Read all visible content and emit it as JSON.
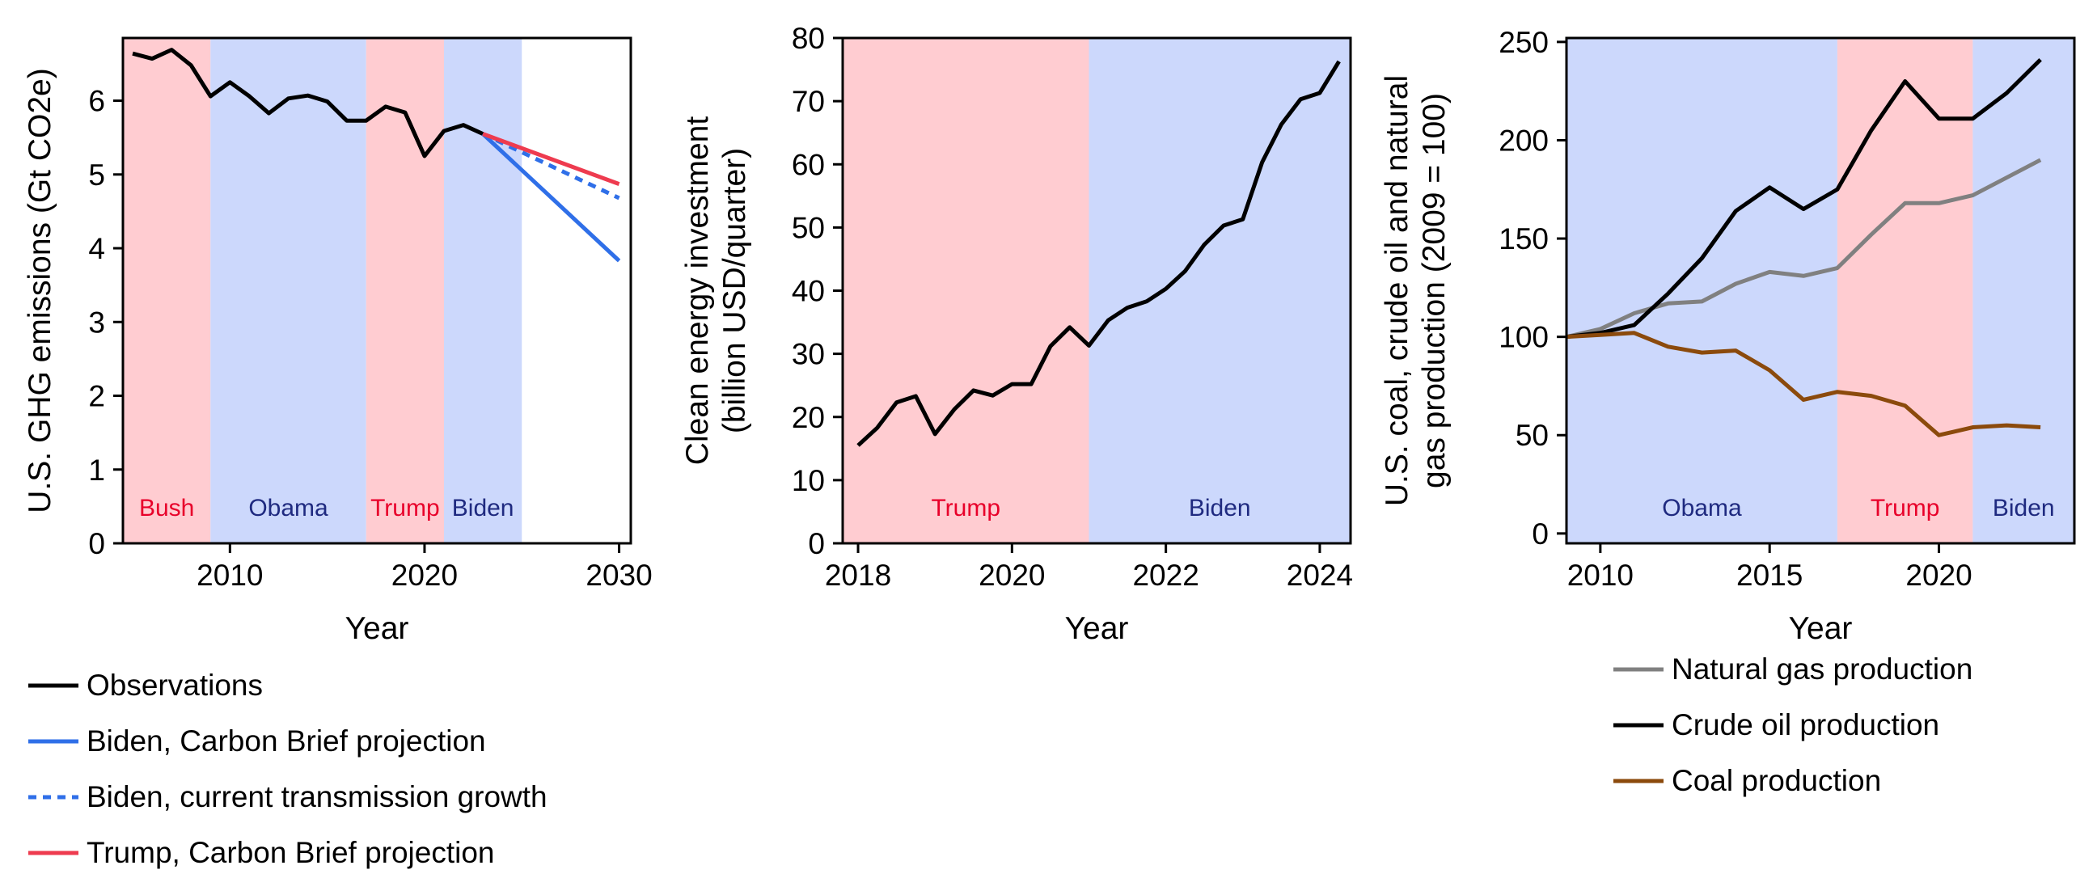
{
  "colors": {
    "republican_band": "#ffccd1",
    "democrat_band": "#ccd8fc",
    "republican_text": "#e8002a",
    "democrat_text": "#1f2a80",
    "observations": "#000000",
    "biden_projection": "#2f6fe8",
    "trump_projection": "#ee3b4f",
    "natural_gas": "#808080",
    "crude_oil": "#000000",
    "coal": "#8b4a0c"
  },
  "chart_data": [
    {
      "type": "line",
      "xlabel": "Year",
      "ylabel": "U.S. GHG emissions (Gt CO2e)",
      "xlim": [
        2004.5,
        2030.6
      ],
      "ylim": [
        0,
        6.85
      ],
      "xticks": [
        2010,
        2020,
        2030
      ],
      "yticks": [
        0,
        1,
        2,
        3,
        4,
        5,
        6
      ],
      "grid": false,
      "legend": "below",
      "administrations": [
        {
          "label": "Bush",
          "start": 2004.5,
          "end": 2009,
          "party": "R"
        },
        {
          "label": "Obama",
          "start": 2009,
          "end": 2017,
          "party": "D"
        },
        {
          "label": "Trump",
          "start": 2017,
          "end": 2021,
          "party": "R"
        },
        {
          "label": "Biden",
          "start": 2021,
          "end": 2025,
          "party": "D"
        }
      ],
      "series": [
        {
          "name": "Observations",
          "style": "solid",
          "color_key": "observations",
          "x": [
            2005,
            2006,
            2007,
            2008,
            2009,
            2010,
            2011,
            2012,
            2013,
            2014,
            2015,
            2016,
            2017,
            2018,
            2019,
            2020,
            2021,
            2022,
            2023
          ],
          "y": [
            6.64,
            6.57,
            6.69,
            6.48,
            6.06,
            6.25,
            6.06,
            5.83,
            6.03,
            6.07,
            5.99,
            5.73,
            5.73,
            5.92,
            5.84,
            5.25,
            5.59,
            5.67,
            5.55
          ]
        },
        {
          "name": "Biden, Carbon Brief projection",
          "style": "solid",
          "color_key": "biden_projection",
          "x": [
            2023,
            2030
          ],
          "y": [
            5.55,
            3.83
          ]
        },
        {
          "name": "Biden, current transmission growth",
          "style": "dotted",
          "color_key": "biden_projection",
          "x": [
            2023,
            2030
          ],
          "y": [
            5.55,
            4.68
          ]
        },
        {
          "name": "Trump, Carbon Brief projection",
          "style": "solid",
          "color_key": "trump_projection",
          "x": [
            2023,
            2030
          ],
          "y": [
            5.55,
            4.87
          ]
        }
      ]
    },
    {
      "type": "line",
      "xlabel": "Year",
      "ylabel": [
        "Clean energy investment",
        "(billion USD/quarter)"
      ],
      "xlim": [
        2017.8,
        2024.4
      ],
      "ylim": [
        0,
        80
      ],
      "xticks": [
        2018,
        2020,
        2022,
        2024
      ],
      "yticks": [
        0,
        10,
        20,
        30,
        40,
        50,
        60,
        70,
        80
      ],
      "grid": false,
      "administrations": [
        {
          "label": "Trump",
          "start": 2017.8,
          "end": 2021,
          "party": "R"
        },
        {
          "label": "Biden",
          "start": 2021,
          "end": 2024.4,
          "party": "D"
        }
      ],
      "series": [
        {
          "name": "",
          "style": "solid",
          "color_key": "observations",
          "x": [
            2018.0,
            2018.25,
            2018.5,
            2018.75,
            2019.0,
            2019.25,
            2019.5,
            2019.75,
            2020.0,
            2020.25,
            2020.5,
            2020.75,
            2021.0,
            2021.25,
            2021.5,
            2021.75,
            2022.0,
            2022.25,
            2022.5,
            2022.75,
            2023.0,
            2023.25,
            2023.5,
            2023.75,
            2024.0,
            2024.25
          ],
          "y": [
            15.5,
            18.3,
            22.3,
            23.3,
            17.3,
            21.2,
            24.2,
            23.4,
            25.2,
            25.2,
            31.2,
            34.2,
            31.3,
            35.3,
            37.3,
            38.3,
            40.3,
            43.1,
            47.3,
            50.3,
            51.3,
            60.3,
            66.3,
            70.3,
            71.3,
            76.3
          ]
        }
      ]
    },
    {
      "type": "line",
      "xlabel": "Year",
      "ylabel": [
        "U.S. coal, crude oil and natural",
        "gas production (2009 = 100)"
      ],
      "xlim": [
        2009,
        2024
      ],
      "ylim": [
        -5,
        252
      ],
      "xticks": [
        2010,
        2015,
        2020
      ],
      "yticks": [
        0,
        50,
        100,
        150,
        200,
        250
      ],
      "grid": false,
      "legend": "below",
      "administrations": [
        {
          "label": "Obama",
          "start": 2009,
          "end": 2017,
          "party": "D"
        },
        {
          "label": "Trump",
          "start": 2017,
          "end": 2021,
          "party": "R"
        },
        {
          "label": "Biden",
          "start": 2021,
          "end": 2024,
          "party": "D"
        }
      ],
      "series": [
        {
          "name": "Natural gas production",
          "style": "solid",
          "color_key": "natural_gas",
          "x": [
            2009,
            2010,
            2011,
            2012,
            2013,
            2014,
            2015,
            2016,
            2017,
            2018,
            2019,
            2020,
            2021,
            2022,
            2023
          ],
          "y": [
            100,
            104,
            112,
            117,
            118,
            127,
            133,
            131,
            135,
            152,
            168,
            168,
            172,
            181,
            190
          ]
        },
        {
          "name": "Crude oil production",
          "style": "solid",
          "color_key": "crude_oil",
          "x": [
            2009,
            2010,
            2011,
            2012,
            2013,
            2014,
            2015,
            2016,
            2017,
            2018,
            2019,
            2020,
            2021,
            2022,
            2023
          ],
          "y": [
            100,
            102,
            106,
            122,
            140,
            164,
            176,
            165,
            175,
            205,
            230,
            211,
            211,
            224,
            241
          ]
        },
        {
          "name": "Coal production",
          "style": "solid",
          "color_key": "coal",
          "x": [
            2009,
            2010,
            2011,
            2012,
            2013,
            2014,
            2015,
            2016,
            2017,
            2018,
            2019,
            2020,
            2021,
            2022,
            2023
          ],
          "y": [
            100,
            101,
            102,
            95,
            92,
            93,
            83,
            68,
            72,
            70,
            65,
            50,
            54,
            55,
            54
          ]
        }
      ]
    }
  ]
}
